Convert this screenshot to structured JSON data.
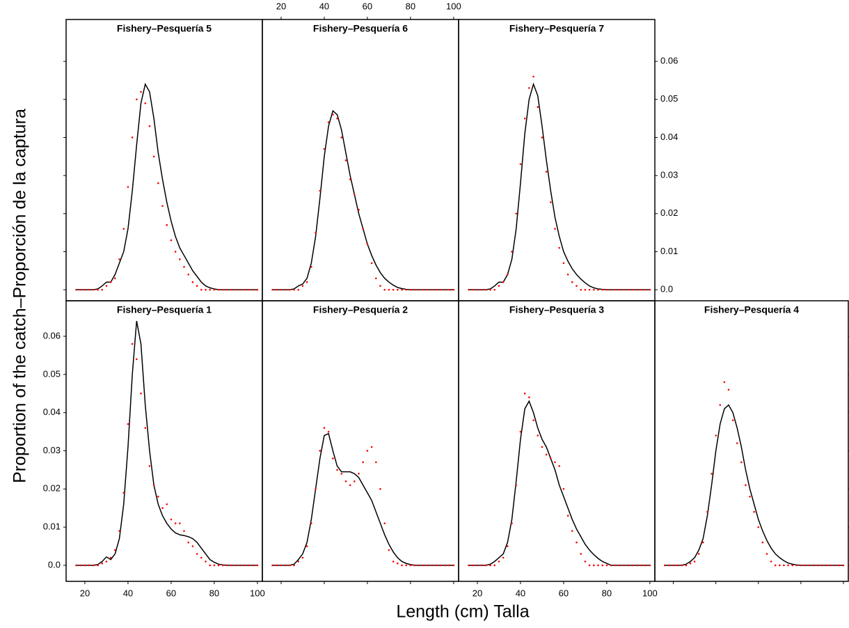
{
  "xlabel": "Length (cm) Talla",
  "ylabel": "Proportion of the catch–Proporción de la captura",
  "chart_data": [
    {
      "type": "line",
      "title": "Fishery–Pesquería  5",
      "x": [
        16,
        18,
        20,
        22,
        24,
        26,
        28,
        30,
        32,
        34,
        36,
        38,
        40,
        42,
        44,
        46,
        48,
        50,
        52,
        54,
        56,
        58,
        60,
        62,
        64,
        66,
        68,
        70,
        72,
        74,
        76,
        78,
        80,
        82,
        84,
        86,
        88,
        90,
        92,
        94,
        96,
        98,
        100
      ],
      "series": [
        {
          "type": "line",
          "color": "#000000",
          "values": [
            0,
            0,
            0,
            0,
            0,
            0.0002,
            0.001,
            0.002,
            0.002,
            0.004,
            0.007,
            0.01,
            0.016,
            0.026,
            0.038,
            0.049,
            0.054,
            0.052,
            0.045,
            0.036,
            0.029,
            0.023,
            0.018,
            0.014,
            0.011,
            0.009,
            0.007,
            0.005,
            0.0035,
            0.002,
            0.001,
            0.0005,
            0.0002,
            0,
            0,
            0,
            0,
            0,
            0,
            0,
            0,
            0,
            0
          ]
        },
        {
          "type": "scatter",
          "color": "#ff0000",
          "values": [
            0,
            0,
            0,
            0,
            0,
            0,
            0,
            0.001,
            0.002,
            0.003,
            0.008,
            0.016,
            0.027,
            0.04,
            0.05,
            0.052,
            0.049,
            0.043,
            0.035,
            0.028,
            0.022,
            0.017,
            0.013,
            0.01,
            0.008,
            0.006,
            0.004,
            0.002,
            0.001,
            0,
            0,
            0,
            0,
            0,
            0,
            0,
            0,
            0,
            0,
            0,
            0,
            0,
            0
          ]
        }
      ],
      "xlim": [
        11.3,
        102.3
      ],
      "ylim": [
        -0.0029,
        0.071
      ],
      "xticks": [
        20,
        40,
        60,
        80,
        100
      ],
      "yticks": [
        {
          "value": 0,
          "label": "0.0"
        },
        0.01,
        0.02,
        0.03,
        0.04,
        0.05,
        0.06
      ],
      "xtick_side": null,
      "xtick_labels": false,
      "ytick_side": "left",
      "ytick_labels": false
    },
    {
      "type": "line",
      "title": "Fishery–Pesquería  6",
      "x": [
        16,
        18,
        20,
        22,
        24,
        26,
        28,
        30,
        32,
        34,
        36,
        38,
        40,
        42,
        44,
        46,
        48,
        50,
        52,
        54,
        56,
        58,
        60,
        62,
        64,
        66,
        68,
        70,
        72,
        74,
        76,
        78,
        80,
        82,
        84,
        86,
        88,
        90,
        92,
        94,
        96,
        98,
        100
      ],
      "series": [
        {
          "type": "line",
          "color": "#000000",
          "values": [
            0,
            0,
            0,
            0,
            0,
            0.0002,
            0.001,
            0.0015,
            0.003,
            0.007,
            0.014,
            0.024,
            0.035,
            0.043,
            0.047,
            0.046,
            0.042,
            0.036,
            0.03,
            0.025,
            0.02,
            0.016,
            0.012,
            0.009,
            0.0065,
            0.0045,
            0.003,
            0.002,
            0.0012,
            0.0006,
            0.0003,
            0.0001,
            0,
            0,
            0,
            0,
            0,
            0,
            0,
            0,
            0,
            0,
            0
          ]
        },
        {
          "type": "scatter",
          "color": "#ff0000",
          "values": [
            0,
            0,
            0,
            0,
            0,
            0,
            0,
            0.001,
            0.002,
            0.006,
            0.015,
            0.026,
            0.037,
            0.044,
            0.046,
            0.045,
            0.04,
            0.034,
            0.029,
            0.025,
            0.021,
            0.016,
            0.012,
            0.007,
            0.003,
            0.001,
            0,
            0,
            0,
            0,
            0,
            0,
            0,
            0,
            0,
            0,
            0,
            0,
            0,
            0,
            0,
            0,
            0
          ]
        }
      ],
      "xlim": [
        11.3,
        102.3
      ],
      "ylim": [
        -0.0029,
        0.071
      ],
      "xticks": [
        20,
        40,
        60,
        80,
        100
      ],
      "yticks": [
        {
          "value": 0,
          "label": "0.0"
        },
        0.01,
        0.02,
        0.03,
        0.04,
        0.05,
        0.06
      ],
      "xtick_side": "top",
      "xtick_labels": true,
      "ytick_side": null,
      "ytick_labels": false
    },
    {
      "type": "line",
      "title": "Fishery–Pesquería  7",
      "x": [
        16,
        18,
        20,
        22,
        24,
        26,
        28,
        30,
        32,
        34,
        36,
        38,
        40,
        42,
        44,
        46,
        48,
        50,
        52,
        54,
        56,
        58,
        60,
        62,
        64,
        66,
        68,
        70,
        72,
        74,
        76,
        78,
        80,
        82,
        84,
        86,
        88,
        90,
        92,
        94,
        96,
        98,
        100
      ],
      "series": [
        {
          "type": "line",
          "color": "#000000",
          "values": [
            0,
            0,
            0,
            0,
            0,
            0.0002,
            0.001,
            0.002,
            0.002,
            0.004,
            0.008,
            0.016,
            0.028,
            0.041,
            0.05,
            0.054,
            0.051,
            0.043,
            0.034,
            0.026,
            0.019,
            0.014,
            0.01,
            0.0075,
            0.0055,
            0.004,
            0.0028,
            0.0018,
            0.001,
            0.0005,
            0.0002,
            0.0001,
            0,
            0,
            0,
            0,
            0,
            0,
            0,
            0,
            0,
            0,
            0
          ]
        },
        {
          "type": "scatter",
          "color": "#ff0000",
          "values": [
            0,
            0,
            0,
            0,
            0,
            0,
            0,
            0.001,
            0.002,
            0.004,
            0.01,
            0.02,
            0.033,
            0.045,
            0.053,
            0.056,
            0.048,
            0.04,
            0.031,
            0.023,
            0.016,
            0.011,
            0.007,
            0.004,
            0.002,
            0.001,
            0,
            0,
            0,
            0,
            0,
            0,
            0,
            0,
            0,
            0,
            0,
            0,
            0,
            0,
            0,
            0,
            0
          ]
        }
      ],
      "xlim": [
        11.3,
        102.3
      ],
      "ylim": [
        -0.0029,
        0.071
      ],
      "xticks": [
        20,
        40,
        60,
        80,
        100
      ],
      "yticks": [
        {
          "value": 0,
          "label": "0.0"
        },
        0.01,
        0.02,
        0.03,
        0.04,
        0.05,
        0.06
      ],
      "xtick_side": null,
      "xtick_labels": false,
      "ytick_side": "right",
      "ytick_labels": true
    },
    {
      "type": "line",
      "title": "Fishery–Pesquería  1",
      "x": [
        16,
        18,
        20,
        22,
        24,
        26,
        28,
        30,
        32,
        34,
        36,
        38,
        40,
        42,
        44,
        46,
        48,
        50,
        52,
        54,
        56,
        58,
        60,
        62,
        64,
        66,
        68,
        70,
        72,
        74,
        76,
        78,
        80,
        82,
        84,
        86,
        88,
        90,
        92,
        94,
        96,
        98,
        100
      ],
      "series": [
        {
          "type": "line",
          "color": "#000000",
          "values": [
            0,
            0,
            0,
            0,
            0,
            0.0002,
            0.001,
            0.0022,
            0.0015,
            0.003,
            0.007,
            0.016,
            0.031,
            0.05,
            0.064,
            0.058,
            0.042,
            0.03,
            0.021,
            0.016,
            0.013,
            0.011,
            0.0095,
            0.0085,
            0.008,
            0.0078,
            0.0075,
            0.007,
            0.006,
            0.0045,
            0.003,
            0.0015,
            0.0008,
            0.0003,
            0.0001,
            0,
            0,
            0,
            0,
            0,
            0,
            0,
            0
          ]
        },
        {
          "type": "scatter",
          "color": "#ff0000",
          "values": [
            0,
            0,
            0,
            0,
            0,
            0,
            0.0005,
            0.001,
            0.002,
            0.004,
            0.009,
            0.019,
            0.037,
            0.058,
            0.054,
            0.045,
            0.036,
            0.026,
            0.021,
            0.018,
            0.015,
            0.016,
            0.012,
            0.011,
            0.011,
            0.009,
            0.006,
            0.005,
            0.003,
            0.002,
            0.001,
            0,
            0,
            0,
            0,
            0,
            0,
            0,
            0,
            0,
            0,
            0,
            0
          ]
        }
      ],
      "xlim": [
        11.3,
        102.3
      ],
      "ylim": [
        -0.0042,
        0.0693
      ],
      "xticks": [
        20,
        40,
        60,
        80,
        100
      ],
      "yticks": [
        {
          "value": 0,
          "label": "0.0"
        },
        0.01,
        0.02,
        0.03,
        0.04,
        0.05,
        0.06
      ],
      "xtick_side": "bottom",
      "xtick_labels": true,
      "ytick_side": "left",
      "ytick_labels": true
    },
    {
      "type": "line",
      "title": "Fishery–Pesquería  2",
      "x": [
        16,
        18,
        20,
        22,
        24,
        26,
        28,
        30,
        32,
        34,
        36,
        38,
        40,
        42,
        44,
        46,
        48,
        50,
        52,
        54,
        56,
        58,
        60,
        62,
        64,
        66,
        68,
        70,
        72,
        74,
        76,
        78,
        80,
        82,
        84,
        86,
        88,
        90,
        92,
        94,
        96,
        98,
        100
      ],
      "series": [
        {
          "type": "line",
          "color": "#000000",
          "values": [
            0,
            0,
            0,
            0,
            0,
            0.0003,
            0.0015,
            0.003,
            0.006,
            0.012,
            0.02,
            0.028,
            0.034,
            0.0345,
            0.03,
            0.026,
            0.0245,
            0.0245,
            0.0245,
            0.024,
            0.023,
            0.021,
            0.019,
            0.017,
            0.014,
            0.011,
            0.008,
            0.0055,
            0.0035,
            0.002,
            0.001,
            0.0005,
            0.0002,
            0,
            0,
            0,
            0,
            0,
            0,
            0,
            0,
            0,
            0
          ]
        },
        {
          "type": "scatter",
          "color": "#ff0000",
          "values": [
            0,
            0,
            0,
            0,
            0,
            0,
            0.001,
            0.002,
            0.005,
            0.011,
            0.02,
            0.03,
            0.036,
            0.035,
            0.028,
            0.025,
            0.024,
            0.022,
            0.021,
            0.022,
            0.024,
            0.027,
            0.03,
            0.031,
            0.027,
            0.02,
            0.011,
            0.004,
            0.001,
            0.0005,
            0,
            0,
            0,
            0,
            0,
            0,
            0,
            0,
            0,
            0,
            0,
            0,
            0
          ]
        }
      ],
      "xlim": [
        11.3,
        102.3
      ],
      "ylim": [
        -0.0042,
        0.0693
      ],
      "xticks": [
        20,
        40,
        60,
        80,
        100
      ],
      "yticks": [
        {
          "value": 0,
          "label": "0.0"
        },
        0.01,
        0.02,
        0.03,
        0.04,
        0.05,
        0.06
      ],
      "xtick_side": "bottom",
      "xtick_labels": false,
      "ytick_side": null,
      "ytick_labels": false
    },
    {
      "type": "line",
      "title": "Fishery–Pesquería  3",
      "x": [
        16,
        18,
        20,
        22,
        24,
        26,
        28,
        30,
        32,
        34,
        36,
        38,
        40,
        42,
        44,
        46,
        48,
        50,
        52,
        54,
        56,
        58,
        60,
        62,
        64,
        66,
        68,
        70,
        72,
        74,
        76,
        78,
        80,
        82,
        84,
        86,
        88,
        90,
        92,
        94,
        96,
        98,
        100
      ],
      "series": [
        {
          "type": "line",
          "color": "#000000",
          "values": [
            0,
            0,
            0,
            0,
            0,
            0.0003,
            0.001,
            0.002,
            0.003,
            0.006,
            0.012,
            0.022,
            0.033,
            0.041,
            0.043,
            0.04,
            0.036,
            0.033,
            0.031,
            0.028,
            0.025,
            0.021,
            0.018,
            0.015,
            0.012,
            0.0095,
            0.0075,
            0.0055,
            0.004,
            0.0028,
            0.0018,
            0.001,
            0.0005,
            0,
            0,
            0,
            0,
            0,
            0,
            0,
            0,
            0,
            0
          ]
        },
        {
          "type": "scatter",
          "color": "#ff0000",
          "values": [
            0,
            0,
            0,
            0,
            0,
            0,
            0,
            0.001,
            0.002,
            0.005,
            0.011,
            0.021,
            0.035,
            0.045,
            0.044,
            0.038,
            0.034,
            0.031,
            0.029,
            0.028,
            0.027,
            0.026,
            0.02,
            0.013,
            0.009,
            0.006,
            0.003,
            0.001,
            0,
            0,
            0,
            0,
            0,
            0,
            0,
            0,
            0,
            0,
            0,
            0,
            0,
            0,
            0
          ]
        }
      ],
      "xlim": [
        11.3,
        102.3
      ],
      "ylim": [
        -0.0042,
        0.0693
      ],
      "xticks": [
        20,
        40,
        60,
        80,
        100
      ],
      "yticks": [
        {
          "value": 0,
          "label": "0.0"
        },
        0.01,
        0.02,
        0.03,
        0.04,
        0.05,
        0.06
      ],
      "xtick_side": "bottom",
      "xtick_labels": true,
      "ytick_side": null,
      "ytick_labels": false
    },
    {
      "type": "line",
      "title": "Fishery–Pesquería  4",
      "x": [
        16,
        18,
        20,
        22,
        24,
        26,
        28,
        30,
        32,
        34,
        36,
        38,
        40,
        42,
        44,
        46,
        48,
        50,
        52,
        54,
        56,
        58,
        60,
        62,
        64,
        66,
        68,
        70,
        72,
        74,
        76,
        78,
        80,
        82,
        84,
        86,
        88,
        90,
        92,
        94,
        96,
        98,
        100
      ],
      "series": [
        {
          "type": "line",
          "color": "#000000",
          "values": [
            0,
            0,
            0,
            0,
            0,
            0.0003,
            0.001,
            0.002,
            0.004,
            0.007,
            0.013,
            0.021,
            0.03,
            0.037,
            0.041,
            0.042,
            0.04,
            0.036,
            0.031,
            0.025,
            0.02,
            0.016,
            0.012,
            0.009,
            0.0065,
            0.0045,
            0.003,
            0.002,
            0.0012,
            0.0006,
            0.0003,
            0.0001,
            0,
            0,
            0,
            0,
            0,
            0,
            0,
            0,
            0,
            0,
            0
          ]
        },
        {
          "type": "scatter",
          "color": "#ff0000",
          "values": [
            0,
            0,
            0,
            0,
            0,
            0,
            0.0005,
            0.001,
            0.003,
            0.006,
            0.014,
            0.024,
            0.034,
            0.042,
            0.048,
            0.046,
            0.038,
            0.032,
            0.027,
            0.021,
            0.018,
            0.014,
            0.01,
            0.006,
            0.003,
            0.001,
            0,
            0,
            0,
            0,
            0,
            0,
            0,
            0,
            0,
            0,
            0,
            0,
            0,
            0,
            0,
            0,
            0
          ]
        }
      ],
      "xlim": [
        11.3,
        102.3
      ],
      "ylim": [
        -0.0042,
        0.0693
      ],
      "xticks": [
        20,
        40,
        60,
        80,
        100
      ],
      "yticks": [
        {
          "value": 0,
          "label": "0.0"
        },
        0.01,
        0.02,
        0.03,
        0.04,
        0.05,
        0.06
      ],
      "xtick_side": "bottom",
      "xtick_labels": false,
      "ytick_side": "right",
      "ytick_labels": false
    }
  ]
}
